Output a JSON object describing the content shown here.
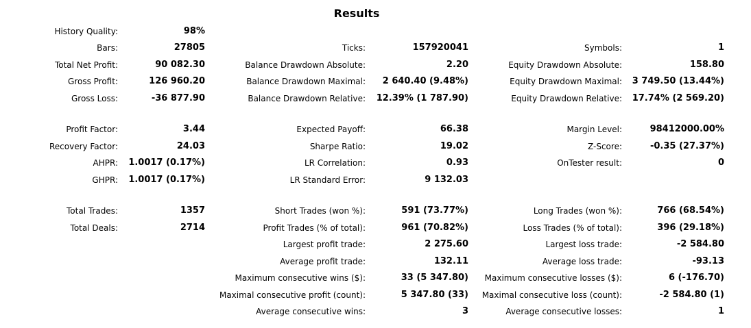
{
  "title": "Results",
  "rows": [
    {
      "c1": {
        "label": "History Quality:",
        "value": "98%"
      }
    },
    {
      "c1": {
        "label": "Bars:",
        "value": "27805"
      },
      "c2": {
        "label": "Ticks:",
        "value": "157920041"
      },
      "c3": {
        "label": "Symbols:",
        "value": "1"
      }
    },
    {
      "c1": {
        "label": "Total Net Profit:",
        "value": "90 082.30"
      },
      "c2": {
        "label": "Balance Drawdown Absolute:",
        "value": "2.20"
      },
      "c3": {
        "label": "Equity Drawdown Absolute:",
        "value": "158.80"
      }
    },
    {
      "c1": {
        "label": "Gross Profit:",
        "value": "126 960.20"
      },
      "c2": {
        "label": "Balance Drawdown Maximal:",
        "value": "2 640.40 (9.48%)"
      },
      "c3": {
        "label": "Equity Drawdown Maximal:",
        "value": "3 749.50 (13.44%)"
      }
    },
    {
      "c1": {
        "label": "Gross Loss:",
        "value": "-36 877.90"
      },
      "c2": {
        "label": "Balance Drawdown Relative:",
        "value": "12.39% (1 787.90)"
      },
      "c3": {
        "label": "Equity Drawdown Relative:",
        "value": "17.74% (2 569.20)"
      }
    },
    {
      "c1": {
        "label": "Profit Factor:",
        "value": "3.44"
      },
      "c2": {
        "label": "Expected Payoff:",
        "value": "66.38"
      },
      "c3": {
        "label": "Margin Level:",
        "value": "98412000.00%"
      }
    },
    {
      "c1": {
        "label": "Recovery Factor:",
        "value": "24.03"
      },
      "c2": {
        "label": "Sharpe Ratio:",
        "value": "19.02"
      },
      "c3": {
        "label": "Z-Score:",
        "value": "-0.35 (27.37%)"
      }
    },
    {
      "c1": {
        "label": "AHPR:",
        "value": "1.0017 (0.17%)"
      },
      "c2": {
        "label": "LR Correlation:",
        "value": "0.93"
      },
      "c3": {
        "label": "OnTester result:",
        "value": "0"
      }
    },
    {
      "c1": {
        "label": "GHPR:",
        "value": "1.0017 (0.17%)"
      },
      "c2": {
        "label": "LR Standard Error:",
        "value": "9 132.03"
      }
    },
    {
      "c1": {
        "label": "Total Trades:",
        "value": "1357"
      },
      "c2": {
        "label": "Short Trades (won %):",
        "value": "591 (73.77%)"
      },
      "c3": {
        "label": "Long Trades (won %):",
        "value": "766 (68.54%)"
      }
    },
    {
      "c1": {
        "label": "Total Deals:",
        "value": "2714"
      },
      "c2": {
        "label": "Profit Trades (% of total):",
        "value": "961 (70.82%)"
      },
      "c3": {
        "label": "Loss Trades (% of total):",
        "value": "396 (29.18%)"
      }
    },
    {
      "c2": {
        "label": "Largest profit trade:",
        "value": "2 275.60"
      },
      "c3": {
        "label": "Largest loss trade:",
        "value": "-2 584.80"
      }
    },
    {
      "c2": {
        "label": "Average profit trade:",
        "value": "132.11"
      },
      "c3": {
        "label": "Average loss trade:",
        "value": "-93.13"
      }
    },
    {
      "c2": {
        "label": "Maximum consecutive wins ($):",
        "value": "33 (5 347.80)"
      },
      "c3": {
        "label": "Maximum consecutive losses ($):",
        "value": "6 (-176.70)"
      }
    },
    {
      "c2": {
        "label": "Maximal consecutive profit (count):",
        "value": "5 347.80 (33)"
      },
      "c3": {
        "label": "Maximal consecutive loss (count):",
        "value": "-2 584.80 (1)"
      }
    },
    {
      "c2": {
        "label": "Average consecutive wins:",
        "value": "3"
      },
      "c3": {
        "label": "Average consecutive losses:",
        "value": "1"
      }
    }
  ]
}
